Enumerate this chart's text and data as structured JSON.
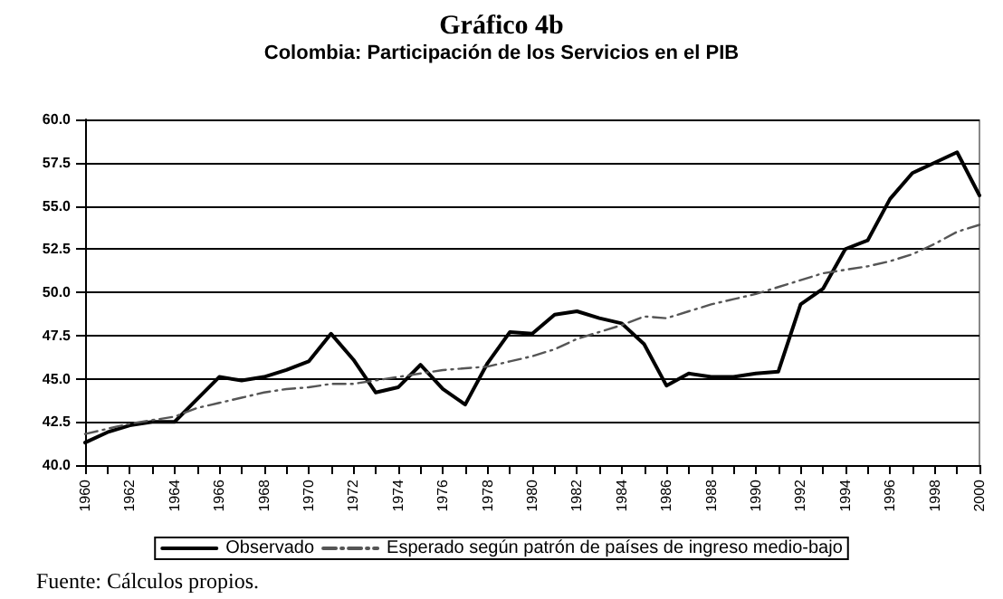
{
  "chart_data": {
    "type": "line",
    "title": "Gráfico 4b",
    "subtitle": "Colombia: Participación de los Servicios en el PIB",
    "categories": [
      "1960",
      null,
      "1962",
      null,
      "1964",
      null,
      "1966",
      null,
      "1968",
      null,
      "1970",
      null,
      "1972",
      null,
      "1974",
      null,
      "1976",
      null,
      "1978",
      null,
      "1980",
      null,
      "1982",
      null,
      "1984",
      null,
      "1986",
      null,
      "1988",
      null,
      "1990",
      null,
      "1992",
      null,
      "1994",
      null,
      "1996",
      null,
      "1998",
      null,
      "2000"
    ],
    "series": [
      {
        "name": "Observado",
        "color": "#000000",
        "line_style": "solid",
        "values": [
          41.3,
          41.9,
          42.3,
          42.5,
          42.5,
          43.8,
          45.1,
          44.9,
          45.1,
          45.5,
          46.0,
          47.6,
          46.1,
          44.2,
          44.5,
          45.8,
          44.4,
          43.5,
          45.9,
          47.7,
          47.6,
          48.7,
          48.9,
          48.5,
          48.2,
          47.0,
          44.6,
          45.3,
          45.1,
          45.1,
          45.3,
          45.4,
          49.3,
          50.2,
          52.5,
          53.0,
          55.4,
          56.9,
          57.5,
          58.1,
          55.6
        ]
      },
      {
        "name": "Esperado según patrón de países de ingreso medio-bajo",
        "color": "#555555",
        "line_style": "dashed",
        "values": [
          41.8,
          42.1,
          42.4,
          42.6,
          42.8,
          43.3,
          43.6,
          43.9,
          44.2,
          44.4,
          44.5,
          44.7,
          44.7,
          44.9,
          45.1,
          45.3,
          45.5,
          45.6,
          45.7,
          46.0,
          46.3,
          46.7,
          47.3,
          47.7,
          48.1,
          48.6,
          48.5,
          48.9,
          49.3,
          49.6,
          49.9,
          50.3,
          50.7,
          51.1,
          51.3,
          51.5,
          51.8,
          52.2,
          52.8,
          53.5,
          53.9
        ]
      }
    ],
    "ylim": [
      40,
      60
    ],
    "yticks": [
      {
        "value": 40,
        "label": "40.0"
      },
      {
        "value": 42.5,
        "label": "42.5"
      },
      {
        "value": 45,
        "label": "45.0"
      },
      {
        "value": 47.5,
        "label": "47.5"
      },
      {
        "value": 50,
        "label": "50.0"
      },
      {
        "value": 52.5,
        "label": "52.5"
      },
      {
        "value": 55,
        "label": "55.0"
      },
      {
        "value": 57.5,
        "label": "57.5"
      },
      {
        "value": 60,
        "label": "60.0"
      }
    ],
    "grid": "y",
    "legend": "bottom",
    "marker": "none",
    "annotations": [
      "Fuente: Cálculos propios."
    ]
  }
}
